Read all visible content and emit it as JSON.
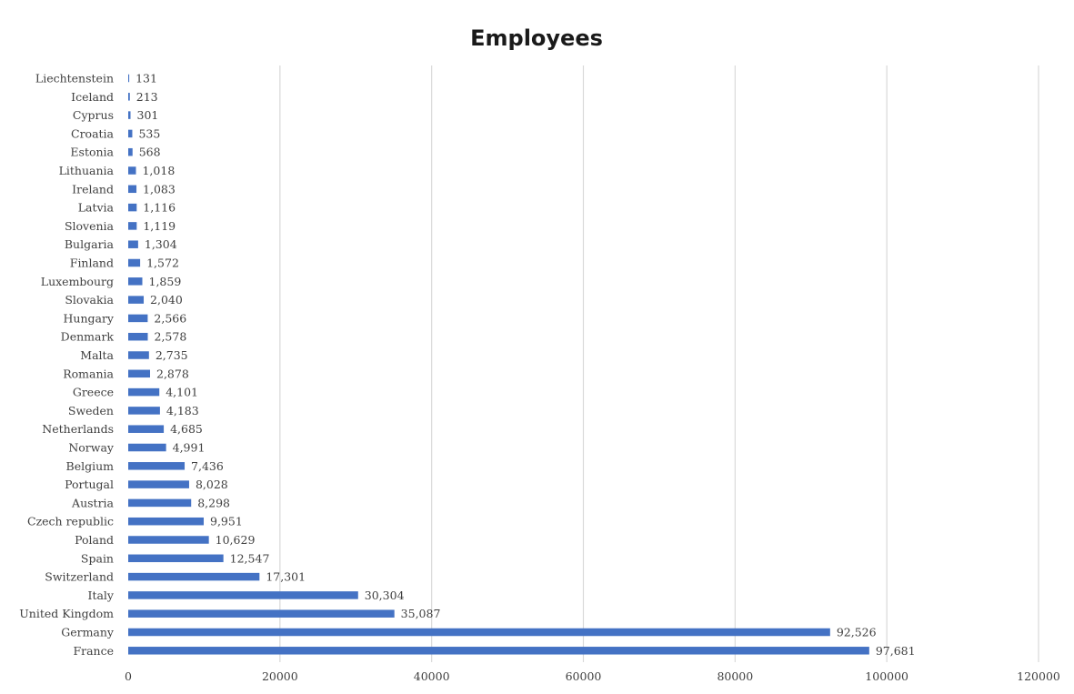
{
  "chart_data": {
    "type": "bar",
    "orientation": "horizontal",
    "title": "Employees",
    "xlabel": "",
    "ylabel": "",
    "xlim": [
      0,
      120000
    ],
    "x_ticks": [
      "0",
      "20000",
      "40000",
      "60000",
      "80000",
      "100000",
      "120000"
    ],
    "grid": true,
    "legend": "none",
    "bar_color": "#4472c4",
    "categories": [
      "Liechtenstein",
      "Iceland",
      "Cyprus",
      "Croatia",
      "Estonia",
      "Lithuania",
      "Ireland",
      "Latvia",
      "Slovenia",
      "Bulgaria",
      "Finland",
      "Luxembourg",
      "Slovakia",
      "Hungary",
      "Denmark",
      "Malta",
      "Romania",
      "Greece",
      "Sweden",
      "Netherlands",
      "Norway",
      "Belgium",
      "Portugal",
      "Austria",
      "Czech republic",
      "Poland",
      "Spain",
      "Switzerland",
      "Italy",
      "United Kingdom",
      "Germany",
      "France"
    ],
    "values": [
      131,
      213,
      301,
      535,
      568,
      1018,
      1083,
      1116,
      1119,
      1304,
      1572,
      1859,
      2040,
      2566,
      2578,
      2735,
      2878,
      4101,
      4183,
      4685,
      4991,
      7436,
      8028,
      8298,
      9951,
      10629,
      12547,
      17301,
      30304,
      35087,
      92526,
      97681
    ],
    "value_labels": [
      "131",
      "213",
      "301",
      "535",
      "568",
      "1,018",
      "1,083",
      "1,116",
      "1,119",
      "1,304",
      "1,572",
      "1,859",
      "2,040",
      "2,566",
      "2,578",
      "2,735",
      "2,878",
      "4,101",
      "4,183",
      "4,685",
      "4,991",
      "7,436",
      "8,028",
      "8,298",
      "9,951",
      "10,629",
      "12,547",
      "17,301",
      "30,304",
      "35,087",
      "92,526",
      "97,681"
    ]
  }
}
